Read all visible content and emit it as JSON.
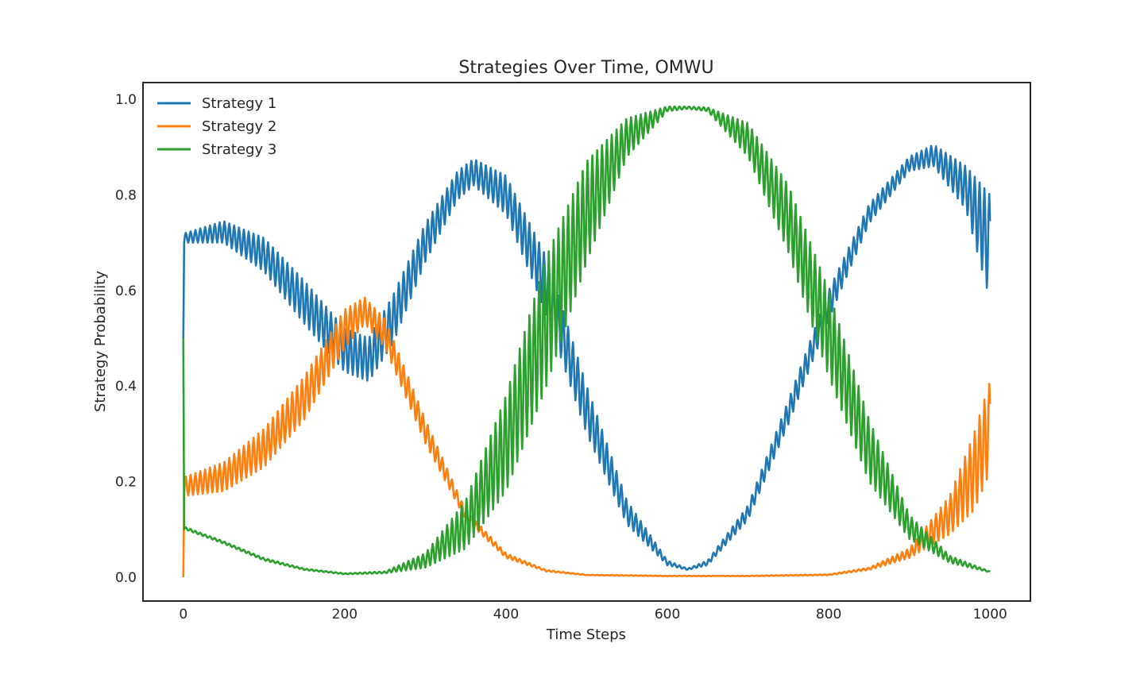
{
  "chart_data": {
    "type": "line",
    "title": "Strategies Over Time, OMWU",
    "xlabel": "Time Steps",
    "ylabel": "Strategy Probability",
    "xlim": [
      -50,
      1050
    ],
    "ylim": [
      -0.05,
      1.035
    ],
    "xticks": [
      0,
      200,
      400,
      600,
      800,
      1000
    ],
    "yticks": [
      0.0,
      0.2,
      0.4,
      0.6,
      0.8,
      1.0
    ],
    "xtick_labels": [
      "0",
      "200",
      "400",
      "600",
      "800",
      "1000"
    ],
    "ytick_labels": [
      "0.0",
      "0.2",
      "0.4",
      "0.6",
      "0.8",
      "1.0"
    ],
    "grid": false,
    "legend_position": "upper-left",
    "steps": 1000,
    "oscillation_period": 6,
    "series": [
      {
        "name": "Strategy 1",
        "color": "#1f77b4",
        "start_value": 0.5,
        "envelope_low": [
          [
            2,
            0.7
          ],
          [
            50,
            0.7
          ],
          [
            100,
            0.64
          ],
          [
            150,
            0.53
          ],
          [
            200,
            0.43
          ],
          [
            230,
            0.41
          ],
          [
            260,
            0.49
          ],
          [
            300,
            0.66
          ],
          [
            340,
            0.79
          ],
          [
            360,
            0.82
          ],
          [
            400,
            0.76
          ],
          [
            450,
            0.55
          ],
          [
            500,
            0.3
          ],
          [
            550,
            0.11
          ],
          [
            600,
            0.025
          ],
          [
            625,
            0.015
          ],
          [
            650,
            0.025
          ],
          [
            700,
            0.12
          ],
          [
            750,
            0.32
          ],
          [
            800,
            0.54
          ],
          [
            850,
            0.74
          ],
          [
            900,
            0.85
          ],
          [
            930,
            0.86
          ],
          [
            970,
            0.77
          ],
          [
            1000,
            0.58
          ]
        ],
        "envelope_high": [
          [
            2,
            0.72
          ],
          [
            50,
            0.745
          ],
          [
            100,
            0.71
          ],
          [
            150,
            0.62
          ],
          [
            200,
            0.52
          ],
          [
            230,
            0.5
          ],
          [
            260,
            0.59
          ],
          [
            300,
            0.74
          ],
          [
            340,
            0.85
          ],
          [
            360,
            0.875
          ],
          [
            400,
            0.84
          ],
          [
            450,
            0.67
          ],
          [
            500,
            0.4
          ],
          [
            550,
            0.16
          ],
          [
            600,
            0.035
          ],
          [
            625,
            0.018
          ],
          [
            650,
            0.035
          ],
          [
            700,
            0.15
          ],
          [
            750,
            0.37
          ],
          [
            800,
            0.6
          ],
          [
            850,
            0.78
          ],
          [
            900,
            0.88
          ],
          [
            930,
            0.905
          ],
          [
            970,
            0.86
          ],
          [
            1000,
            0.8
          ]
        ]
      },
      {
        "name": "Strategy 2",
        "color": "#ff7f0e",
        "start_value": 0.0,
        "envelope_low": [
          [
            2,
            0.17
          ],
          [
            50,
            0.18
          ],
          [
            100,
            0.23
          ],
          [
            150,
            0.33
          ],
          [
            200,
            0.48
          ],
          [
            225,
            0.53
          ],
          [
            250,
            0.48
          ],
          [
            300,
            0.28
          ],
          [
            350,
            0.12
          ],
          [
            400,
            0.04
          ],
          [
            450,
            0.012
          ],
          [
            500,
            0.004
          ],
          [
            600,
            0.002
          ],
          [
            700,
            0.002
          ],
          [
            800,
            0.004
          ],
          [
            850,
            0.015
          ],
          [
            900,
            0.04
          ],
          [
            950,
            0.09
          ],
          [
            980,
            0.14
          ],
          [
            1000,
            0.22
          ]
        ],
        "envelope_high": [
          [
            2,
            0.21
          ],
          [
            50,
            0.24
          ],
          [
            100,
            0.31
          ],
          [
            150,
            0.42
          ],
          [
            200,
            0.56
          ],
          [
            225,
            0.585
          ],
          [
            250,
            0.54
          ],
          [
            300,
            0.33
          ],
          [
            350,
            0.14
          ],
          [
            400,
            0.05
          ],
          [
            450,
            0.015
          ],
          [
            500,
            0.005
          ],
          [
            600,
            0.003
          ],
          [
            700,
            0.003
          ],
          [
            800,
            0.006
          ],
          [
            850,
            0.02
          ],
          [
            900,
            0.06
          ],
          [
            950,
            0.17
          ],
          [
            980,
            0.3
          ],
          [
            1000,
            0.41
          ]
        ]
      },
      {
        "name": "Strategy 3",
        "color": "#2ca02c",
        "start_value": 0.5,
        "envelope_low": [
          [
            2,
            0.1
          ],
          [
            50,
            0.07
          ],
          [
            100,
            0.035
          ],
          [
            150,
            0.015
          ],
          [
            200,
            0.006
          ],
          [
            250,
            0.008
          ],
          [
            300,
            0.02
          ],
          [
            350,
            0.06
          ],
          [
            400,
            0.18
          ],
          [
            450,
            0.4
          ],
          [
            500,
            0.66
          ],
          [
            550,
            0.88
          ],
          [
            600,
            0.975
          ],
          [
            625,
            0.98
          ],
          [
            650,
            0.975
          ],
          [
            700,
            0.88
          ],
          [
            750,
            0.68
          ],
          [
            800,
            0.42
          ],
          [
            850,
            0.2
          ],
          [
            900,
            0.08
          ],
          [
            950,
            0.03
          ],
          [
            1000,
            0.01
          ]
        ],
        "envelope_high": [
          [
            2,
            0.105
          ],
          [
            50,
            0.075
          ],
          [
            100,
            0.04
          ],
          [
            150,
            0.018
          ],
          [
            200,
            0.008
          ],
          [
            250,
            0.012
          ],
          [
            300,
            0.05
          ],
          [
            350,
            0.16
          ],
          [
            400,
            0.38
          ],
          [
            450,
            0.67
          ],
          [
            500,
            0.87
          ],
          [
            550,
            0.96
          ],
          [
            600,
            0.985
          ],
          [
            625,
            0.985
          ],
          [
            650,
            0.983
          ],
          [
            700,
            0.95
          ],
          [
            750,
            0.82
          ],
          [
            800,
            0.6
          ],
          [
            850,
            0.33
          ],
          [
            900,
            0.13
          ],
          [
            950,
            0.045
          ],
          [
            1000,
            0.012
          ]
        ]
      }
    ]
  }
}
